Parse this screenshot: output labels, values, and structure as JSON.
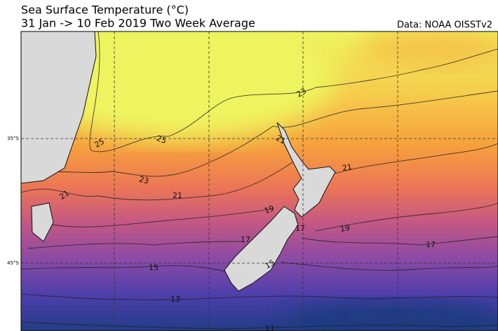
{
  "title": "Sea Surface Temperature (°C)",
  "subtitle": "31 Jan -> 10 Feb 2019 Two Week Average",
  "source": "Data: NOAA OISSTv2",
  "lat_labels": [
    "35°S",
    "45°S"
  ],
  "contour_labels": [
    25,
    25,
    23,
    21,
    21,
    21,
    21,
    23,
    19,
    19,
    17,
    17,
    17,
    15,
    15,
    13,
    11
  ]
}
